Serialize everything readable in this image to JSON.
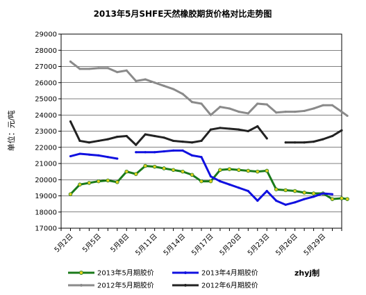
{
  "chart_data": {
    "type": "line",
    "title": "2013年5月SHFE天然橡胶期货价格对比走势图",
    "ylabel": "单位：元/吨",
    "xlabel": "",
    "ylim": [
      17000,
      29000
    ],
    "yticks": [
      17000,
      18000,
      19000,
      20000,
      21000,
      22000,
      23000,
      24000,
      25000,
      26000,
      27000,
      28000,
      29000
    ],
    "x_range": [
      1,
      31
    ],
    "x_ticks": [
      {
        "x": 2,
        "label": "5月2日"
      },
      {
        "x": 5,
        "label": "5月5日"
      },
      {
        "x": 8,
        "label": "5月8日"
      },
      {
        "x": 11,
        "label": "5月11日"
      },
      {
        "x": 14,
        "label": "5月14日"
      },
      {
        "x": 17,
        "label": "5月17日"
      },
      {
        "x": 20,
        "label": "5月20日"
      },
      {
        "x": 23,
        "label": "5月23日"
      },
      {
        "x": 26,
        "label": "5月26日"
      },
      {
        "x": 29,
        "label": "5月29日"
      }
    ],
    "grid": true,
    "legend_position": "bottom",
    "credit": "zhyj制",
    "series": [
      {
        "name": "2013年5月期胶价",
        "color": "#1a7a1a",
        "marker": "#e0d020",
        "segments": [
          [
            [
              2,
              19100
            ],
            [
              3,
              19700
            ],
            [
              4,
              19800
            ],
            [
              5,
              19900
            ],
            [
              6,
              19950
            ],
            [
              7,
              19850
            ],
            [
              8,
              20500
            ],
            [
              9,
              20350
            ],
            [
              10,
              20850
            ],
            [
              11,
              20800
            ],
            [
              12,
              20700
            ],
            [
              13,
              20600
            ],
            [
              14,
              20500
            ],
            [
              15,
              20300
            ],
            [
              16,
              19900
            ],
            [
              17,
              19900
            ],
            [
              18,
              20600
            ],
            [
              19,
              20650
            ],
            [
              20,
              20600
            ],
            [
              21,
              20550
            ],
            [
              22,
              20500
            ],
            [
              23,
              20550
            ],
            [
              24,
              19400
            ],
            [
              25,
              19350
            ],
            [
              26,
              19300
            ],
            [
              27,
              19200
            ],
            [
              28,
              19150
            ],
            [
              29,
              19150
            ],
            [
              30,
              18800
            ],
            [
              31,
              18850
            ],
            [
              32,
              18800
            ]
          ]
        ]
      },
      {
        "name": "2013年4月期胶价",
        "color": "#1010e0",
        "segments": [
          [
            [
              2,
              21450
            ],
            [
              3,
              21600
            ],
            [
              4,
              21550
            ],
            [
              5,
              21500
            ],
            [
              6,
              21400
            ],
            [
              7,
              21300
            ]
          ],
          [
            [
              9,
              21700
            ],
            [
              10,
              21700
            ],
            [
              11,
              21700
            ],
            [
              12,
              21750
            ],
            [
              13,
              21800
            ],
            [
              14,
              21800
            ],
            [
              15,
              21500
            ],
            [
              16,
              21400
            ],
            [
              17,
              20200
            ],
            [
              18,
              19900
            ],
            [
              19,
              19700
            ],
            [
              20,
              19500
            ],
            [
              21,
              19300
            ],
            [
              22,
              18700
            ],
            [
              23,
              19300
            ],
            [
              24,
              18700
            ],
            [
              25,
              18450
            ],
            [
              26,
              18600
            ],
            [
              27,
              18800
            ],
            [
              28,
              18950
            ],
            [
              29,
              19150
            ],
            [
              30,
              19100
            ]
          ]
        ]
      },
      {
        "name": "2012年5月期胶价",
        "color": "#8a8a8a",
        "segments": [
          [
            [
              2,
              27300
            ],
            [
              3,
              26850
            ],
            [
              4,
              26850
            ],
            [
              5,
              26900
            ],
            [
              6,
              26900
            ],
            [
              7,
              26650
            ],
            [
              8,
              26750
            ],
            [
              9,
              26100
            ],
            [
              10,
              26200
            ],
            [
              11,
              26000
            ],
            [
              12,
              25800
            ],
            [
              13,
              25600
            ],
            [
              14,
              25300
            ],
            [
              15,
              24800
            ],
            [
              16,
              24700
            ],
            [
              17,
              24000
            ],
            [
              18,
              24500
            ],
            [
              19,
              24400
            ],
            [
              20,
              24200
            ],
            [
              21,
              24100
            ],
            [
              22,
              24700
            ],
            [
              23,
              24650
            ],
            [
              24,
              24150
            ],
            [
              25,
              24200
            ],
            [
              26,
              24200
            ],
            [
              27,
              24250
            ],
            [
              28,
              24400
            ],
            [
              29,
              24600
            ],
            [
              30,
              24600
            ],
            [
              31,
              24200
            ],
            [
              32,
              23950
            ]
          ]
        ]
      },
      {
        "name": "2012年6月期胶价",
        "color": "#222222",
        "segments": [
          [
            [
              2,
              23600
            ],
            [
              3,
              22400
            ],
            [
              4,
              22300
            ],
            [
              5,
              22400
            ],
            [
              6,
              22500
            ],
            [
              7,
              22650
            ],
            [
              8,
              22700
            ],
            [
              9,
              22150
            ],
            [
              10,
              22800
            ],
            [
              11,
              22700
            ],
            [
              12,
              22600
            ],
            [
              13,
              22400
            ],
            [
              14,
              22350
            ],
            [
              15,
              22300
            ],
            [
              16,
              22400
            ],
            [
              17,
              23100
            ],
            [
              18,
              23200
            ],
            [
              19,
              23150
            ],
            [
              20,
              23100
            ],
            [
              21,
              23000
            ],
            [
              22,
              23300
            ],
            [
              23,
              22550
            ]
          ],
          [
            [
              25,
              22300
            ],
            [
              26,
              22300
            ],
            [
              27,
              22300
            ],
            [
              28,
              22350
            ],
            [
              29,
              22500
            ],
            [
              30,
              22700
            ],
            [
              31,
              23050
            ]
          ]
        ]
      }
    ]
  }
}
